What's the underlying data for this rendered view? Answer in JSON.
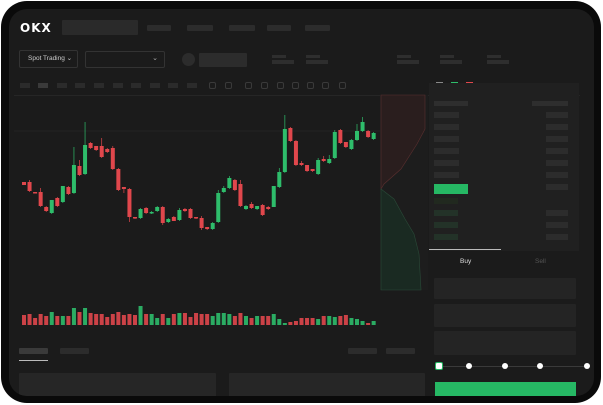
{
  "header": {
    "logo": "OKX"
  },
  "market": {
    "mode_label": "Spot Trading",
    "mode_chevron": "⌄",
    "pair_chevron": "⌄"
  },
  "trade": {
    "buy_tab": "Buy",
    "sell_tab": "Sell",
    "slider_percent": 0
  },
  "colors": {
    "up": "#2ebd6b",
    "down": "#e0474c",
    "accent": "#26b864"
  },
  "toolbar_icons": [
    "line-icon",
    "chevron-down-icon",
    "indicator-icon",
    "chevron-down-icon",
    "wave-icon",
    "ruler-icon",
    "camera-icon",
    "settings-icon",
    "fullscreen-icon"
  ],
  "orderbook_icons": [
    "book-both-icon",
    "book-bids-icon",
    "book-asks-icon"
  ],
  "chart_data": {
    "type": "candlestick",
    "candles": [
      [
        68,
        65,
        68,
        65
      ],
      [
        68,
        59,
        70,
        58
      ],
      [
        58,
        57,
        58,
        57
      ],
      [
        58,
        44,
        62,
        43
      ],
      [
        43,
        39,
        44,
        38
      ],
      [
        37,
        50,
        50,
        36
      ],
      [
        52,
        44,
        53,
        43
      ],
      [
        48,
        64,
        64,
        47
      ],
      [
        63,
        56,
        64,
        55
      ],
      [
        57,
        85,
        103,
        56
      ],
      [
        84,
        75,
        90,
        74
      ],
      [
        76,
        105,
        128,
        75
      ],
      [
        107,
        102,
        108,
        101
      ],
      [
        104,
        100,
        104,
        99
      ],
      [
        104,
        93,
        112,
        92
      ],
      [
        101,
        98,
        102,
        97
      ],
      [
        102,
        81,
        104,
        80
      ],
      [
        81,
        60,
        82,
        59
      ],
      [
        63,
        61,
        63,
        57
      ],
      [
        61,
        33,
        62,
        28
      ],
      [
        33,
        32,
        33,
        31
      ],
      [
        32,
        41,
        42,
        31
      ],
      [
        42,
        37,
        43,
        36
      ],
      [
        37,
        38,
        39,
        36
      ],
      [
        39,
        43,
        44,
        38
      ],
      [
        43,
        27,
        44,
        25
      ],
      [
        28,
        31,
        32,
        27
      ],
      [
        33,
        29,
        34,
        29
      ],
      [
        30,
        40,
        42,
        29
      ],
      [
        41,
        39,
        42,
        38
      ],
      [
        41,
        32,
        42,
        31
      ],
      [
        33,
        32,
        33,
        31
      ],
      [
        32,
        22,
        34,
        20
      ],
      [
        23,
        21,
        23,
        20
      ],
      [
        21,
        27,
        28,
        20
      ],
      [
        28,
        57,
        60,
        27
      ],
      [
        58,
        62,
        64,
        57
      ],
      [
        62,
        72,
        74,
        61
      ],
      [
        70,
        60,
        71,
        59
      ],
      [
        66,
        44,
        70,
        43
      ],
      [
        41,
        44,
        45,
        40
      ],
      [
        46,
        42,
        48,
        41
      ],
      [
        41,
        44,
        44,
        40
      ],
      [
        45,
        35,
        46,
        34
      ],
      [
        43,
        41,
        44,
        40
      ],
      [
        43,
        64,
        64,
        43
      ],
      [
        63,
        78,
        82,
        62
      ],
      [
        78,
        121,
        135,
        77
      ],
      [
        122,
        109,
        123,
        108
      ],
      [
        109,
        85,
        110,
        84
      ],
      [
        87,
        85,
        89,
        84
      ],
      [
        85,
        79,
        85,
        78
      ],
      [
        81,
        79,
        81,
        78
      ],
      [
        76,
        90,
        92,
        75
      ],
      [
        91,
        89,
        94,
        88
      ],
      [
        87,
        91,
        95,
        86
      ],
      [
        92,
        118,
        120,
        91
      ],
      [
        120,
        107,
        121,
        106
      ],
      [
        108,
        103,
        108,
        102
      ],
      [
        101,
        110,
        111,
        100
      ],
      [
        110,
        119,
        126,
        109
      ],
      [
        119,
        128,
        133,
        118
      ],
      [
        119,
        113,
        120,
        112
      ],
      [
        111,
        117,
        118,
        110
      ]
    ],
    "volumes": [
      10,
      11,
      7,
      11,
      9,
      13,
      9,
      9,
      9,
      17,
      13,
      17,
      12,
      11,
      11,
      8,
      11,
      13,
      10,
      11,
      10,
      19,
      11,
      11,
      7,
      11,
      7,
      11,
      12,
      12,
      8,
      12,
      11,
      11,
      9,
      12,
      12,
      11,
      9,
      12,
      9,
      7,
      9,
      9,
      9,
      11,
      6,
      2,
      3,
      4,
      7,
      7,
      7,
      6,
      9,
      9,
      8,
      9,
      10,
      7,
      6,
      4,
      2,
      4
    ],
    "grid": false
  }
}
